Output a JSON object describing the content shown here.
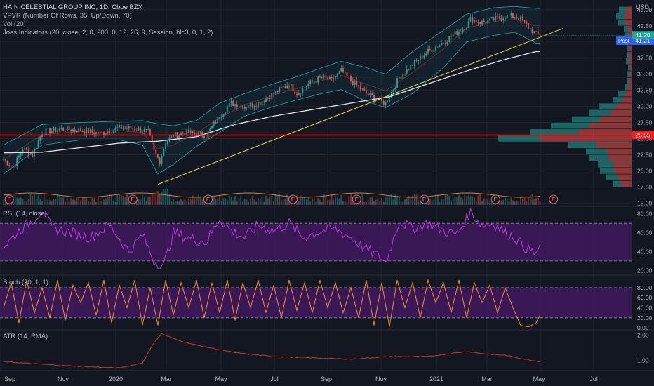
{
  "header": {
    "title": "HAIN CELESTIAL GROUP INC, 1D, Cboe BZX",
    "indicators": [
      "VPVR (Number Of Rows, 35, Up/Down, 70)",
      "Vol (20)",
      "Joes Indicators (20, close, 2, 0, 200, 0, 12, 26, 9, Session, hlc3, 0, 1, 2)"
    ]
  },
  "currency": "USD",
  "price_badges": {
    "post_label": "Post",
    "post_value": "41.21",
    "last_value": "41.20",
    "level_value": "25.55"
  },
  "earnings_marker": "E",
  "panes": {
    "rsi_label": "RSI (14, close)",
    "stoch_label": "Stoch (20, 1, 1)",
    "atr_label": "ATR (14, RMA)"
  },
  "colors": {
    "background": "#131722",
    "up": "#26a69a",
    "down": "#ef5350",
    "bollinger": "#26c6c6",
    "ma200": "#e0e3eb",
    "trendline": "#e6d252",
    "horizontal_level": "#ff1a1a",
    "rsi": "#b33ad6",
    "stoch": "#f28c3a",
    "atr": "#c0392b",
    "band": "#4a1a6b"
  },
  "chart_data": [
    {
      "type": "line",
      "name": "price",
      "x_ticks": [
        "Sep",
        "Nov",
        "2020",
        "Mar",
        "May",
        "Jul",
        "Sep",
        "Nov",
        "2021",
        "Mar",
        "May",
        "Jul"
      ],
      "y_ticks": [
        15.0,
        17.5,
        20.0,
        22.5,
        25.0,
        27.5,
        30.0,
        32.5,
        35.0,
        37.5,
        40.0,
        42.5,
        45.0
      ],
      "ylim": [
        14.5,
        46.5
      ],
      "close_anchors": [
        [
          0,
          21.8
        ],
        [
          5,
          20.5
        ],
        [
          10,
          23.5
        ],
        [
          15,
          22.5
        ],
        [
          20,
          26.0
        ],
        [
          30,
          26.5
        ],
        [
          40,
          26.3
        ],
        [
          50,
          25.8
        ],
        [
          60,
          26.7
        ],
        [
          70,
          26.5
        ],
        [
          75,
          26.0
        ],
        [
          78,
          23.0
        ],
        [
          81,
          21.5
        ],
        [
          84,
          24.5
        ],
        [
          88,
          25.5
        ],
        [
          95,
          26.0
        ],
        [
          105,
          25.5
        ],
        [
          112,
          28.5
        ],
        [
          118,
          30.5
        ],
        [
          125,
          30.0
        ],
        [
          132,
          30.5
        ],
        [
          140,
          32.0
        ],
        [
          148,
          33.5
        ],
        [
          152,
          32.0
        ],
        [
          158,
          33.5
        ],
        [
          165,
          34.5
        ],
        [
          170,
          34.0
        ],
        [
          175,
          35.5
        ],
        [
          180,
          34.0
        ],
        [
          188,
          32.0
        ],
        [
          195,
          30.8
        ],
        [
          198,
          30.5
        ],
        [
          205,
          34.5
        ],
        [
          212,
          36.5
        ],
        [
          220,
          38.5
        ],
        [
          228,
          40.0
        ],
        [
          235,
          41.5
        ],
        [
          240,
          42.5
        ],
        [
          242,
          43.5
        ],
        [
          248,
          43.0
        ],
        [
          254,
          43.5
        ],
        [
          260,
          44.0
        ],
        [
          265,
          44.0
        ],
        [
          268,
          43.5
        ],
        [
          273,
          42.0
        ],
        [
          276,
          41.2
        ]
      ],
      "bollinger_upper_anchors": [
        [
          0,
          24.0
        ],
        [
          20,
          27.2
        ],
        [
          40,
          27.5
        ],
        [
          60,
          27.7
        ],
        [
          72,
          27.8
        ],
        [
          80,
          27.3
        ],
        [
          88,
          27.0
        ],
        [
          100,
          27.8
        ],
        [
          112,
          30.5
        ],
        [
          125,
          32.0
        ],
        [
          140,
          33.5
        ],
        [
          152,
          34.6
        ],
        [
          165,
          36.0
        ],
        [
          175,
          37.0
        ],
        [
          188,
          36.0
        ],
        [
          198,
          35.0
        ],
        [
          212,
          38.5
        ],
        [
          228,
          41.8
        ],
        [
          240,
          44.3
        ],
        [
          254,
          45.3
        ],
        [
          265,
          45.5
        ],
        [
          276,
          45.2
        ]
      ],
      "bollinger_lower_anchors": [
        [
          0,
          19.5
        ],
        [
          20,
          24.0
        ],
        [
          40,
          24.8
        ],
        [
          60,
          24.8
        ],
        [
          72,
          24.0
        ],
        [
          80,
          19.5
        ],
        [
          88,
          21.0
        ],
        [
          100,
          23.8
        ],
        [
          112,
          26.0
        ],
        [
          125,
          28.5
        ],
        [
          140,
          30.0
        ],
        [
          152,
          31.0
        ],
        [
          165,
          32.0
        ],
        [
          175,
          32.6
        ],
        [
          188,
          30.8
        ],
        [
          198,
          29.8
        ],
        [
          212,
          32.0
        ],
        [
          228,
          36.0
        ],
        [
          240,
          40.0
        ],
        [
          254,
          41.0
        ],
        [
          265,
          41.5
        ],
        [
          276,
          39.8
        ]
      ],
      "ma200_anchors": [
        [
          0,
          22.8
        ],
        [
          20,
          22.9
        ],
        [
          40,
          23.6
        ],
        [
          60,
          24.3
        ],
        [
          80,
          24.6
        ],
        [
          100,
          25.3
        ],
        [
          120,
          27.2
        ],
        [
          140,
          28.5
        ],
        [
          160,
          29.5
        ],
        [
          180,
          30.5
        ],
        [
          200,
          31.5
        ],
        [
          220,
          33.5
        ],
        [
          240,
          35.5
        ],
        [
          260,
          37.3
        ],
        [
          276,
          38.5
        ]
      ],
      "trendline": [
        [
          80,
          17.9
        ],
        [
          290,
          42.1
        ]
      ],
      "horizontal_level": 25.55,
      "earnings_bar_index": [
        3,
        67,
        106,
        150,
        183,
        218,
        255
      ],
      "earnings_future_index": 285
    },
    {
      "type": "bar",
      "name": "VPVR volume profile",
      "rows_price": [
        45.0,
        44.0,
        43.0,
        42.0,
        41.0,
        40.0,
        39.0,
        38.0,
        37.0,
        36.0,
        35.0,
        34.0,
        33.0,
        32.0,
        31.0,
        30.0,
        29.0,
        28.0,
        27.0,
        26.0,
        25.0,
        24.0,
        23.0,
        22.0,
        21.0,
        20.0,
        19.0,
        18.0
      ],
      "up_volume": [
        10,
        12,
        10,
        6,
        5,
        4,
        3,
        3,
        4,
        3,
        4,
        3,
        5,
        10,
        14,
        25,
        30,
        40,
        55,
        70,
        60,
        40,
        30,
        28,
        22,
        20,
        16,
        12
      ],
      "down_volume": [
        8,
        10,
        9,
        5,
        4,
        3,
        4,
        3,
        4,
        2,
        3,
        3,
        5,
        9,
        13,
        22,
        30,
        45,
        60,
        75,
        130,
        50,
        35,
        32,
        26,
        25,
        20,
        15
      ]
    },
    {
      "type": "line",
      "name": "RSI",
      "y_ticks": [
        20.0,
        40.0,
        60.0,
        80.0
      ],
      "ylim": [
        15,
        88
      ],
      "band": [
        30,
        70
      ],
      "anchors": [
        [
          0,
          45
        ],
        [
          8,
          62
        ],
        [
          15,
          73
        ],
        [
          20,
          84
        ],
        [
          25,
          65
        ],
        [
          35,
          60
        ],
        [
          45,
          55
        ],
        [
          55,
          68
        ],
        [
          65,
          40
        ],
        [
          72,
          58
        ],
        [
          78,
          30
        ],
        [
          83,
          25
        ],
        [
          88,
          60
        ],
        [
          95,
          55
        ],
        [
          105,
          50
        ],
        [
          112,
          75
        ],
        [
          118,
          62
        ],
        [
          125,
          55
        ],
        [
          132,
          68
        ],
        [
          140,
          62
        ],
        [
          148,
          70
        ],
        [
          155,
          55
        ],
        [
          165,
          62
        ],
        [
          172,
          64
        ],
        [
          180,
          55
        ],
        [
          188,
          42
        ],
        [
          195,
          35
        ],
        [
          198,
          28
        ],
        [
          205,
          72
        ],
        [
          212,
          65
        ],
        [
          220,
          70
        ],
        [
          228,
          62
        ],
        [
          235,
          58
        ],
        [
          242,
          82
        ],
        [
          248,
          68
        ],
        [
          254,
          70
        ],
        [
          260,
          60
        ],
        [
          265,
          55
        ],
        [
          270,
          45
        ],
        [
          275,
          38
        ],
        [
          278,
          42
        ]
      ]
    },
    {
      "type": "line",
      "name": "Stoch",
      "y_ticks": [
        0.0,
        20.0,
        40.0,
        60.0,
        80.0
      ],
      "ylim": [
        -4,
        105
      ],
      "band": [
        20,
        80
      ],
      "anchors": [
        [
          0,
          40
        ],
        [
          4,
          90
        ],
        [
          8,
          10
        ],
        [
          12,
          95
        ],
        [
          16,
          30
        ],
        [
          20,
          80
        ],
        [
          24,
          20
        ],
        [
          28,
          95
        ],
        [
          32,
          15
        ],
        [
          36,
          85
        ],
        [
          40,
          50
        ],
        [
          44,
          90
        ],
        [
          48,
          25
        ],
        [
          52,
          95
        ],
        [
          56,
          10
        ],
        [
          60,
          85
        ],
        [
          64,
          40
        ],
        [
          68,
          95
        ],
        [
          72,
          5
        ],
        [
          76,
          80
        ],
        [
          80,
          5
        ],
        [
          84,
          95
        ],
        [
          88,
          25
        ],
        [
          92,
          90
        ],
        [
          96,
          40
        ],
        [
          100,
          95
        ],
        [
          104,
          20
        ],
        [
          108,
          90
        ],
        [
          112,
          30
        ],
        [
          116,
          95
        ],
        [
          120,
          15
        ],
        [
          124,
          90
        ],
        [
          128,
          40
        ],
        [
          132,
          95
        ],
        [
          136,
          30
        ],
        [
          140,
          85
        ],
        [
          144,
          20
        ],
        [
          148,
          95
        ],
        [
          152,
          35
        ],
        [
          156,
          90
        ],
        [
          160,
          30
        ],
        [
          164,
          95
        ],
        [
          168,
          40
        ],
        [
          172,
          90
        ],
        [
          176,
          30
        ],
        [
          180,
          80
        ],
        [
          184,
          20
        ],
        [
          188,
          95
        ],
        [
          192,
          5
        ],
        [
          196,
          90
        ],
        [
          200,
          2
        ],
        [
          204,
          95
        ],
        [
          208,
          40
        ],
        [
          212,
          90
        ],
        [
          216,
          20
        ],
        [
          220,
          95
        ],
        [
          224,
          50
        ],
        [
          228,
          90
        ],
        [
          232,
          30
        ],
        [
          236,
          95
        ],
        [
          240,
          20
        ],
        [
          244,
          90
        ],
        [
          248,
          50
        ],
        [
          252,
          85
        ],
        [
          256,
          30
        ],
        [
          260,
          80
        ],
        [
          264,
          40
        ],
        [
          268,
          5
        ],
        [
          272,
          2
        ],
        [
          276,
          10
        ],
        [
          278,
          25
        ]
      ]
    },
    {
      "type": "line",
      "name": "ATR",
      "y_ticks": [
        1.0,
        2.0
      ],
      "ylim": [
        0.6,
        2.2
      ],
      "anchors": [
        [
          0,
          0.95
        ],
        [
          30,
          0.8
        ],
        [
          60,
          0.7
        ],
        [
          72,
          0.9
        ],
        [
          78,
          1.7
        ],
        [
          82,
          2.05
        ],
        [
          90,
          1.8
        ],
        [
          100,
          1.6
        ],
        [
          120,
          1.3
        ],
        [
          140,
          1.15
        ],
        [
          160,
          1.1
        ],
        [
          180,
          1.05
        ],
        [
          200,
          1.15
        ],
        [
          220,
          1.15
        ],
        [
          240,
          1.35
        ],
        [
          250,
          1.25
        ],
        [
          260,
          1.2
        ],
        [
          270,
          1.05
        ],
        [
          278,
          0.95
        ]
      ]
    }
  ]
}
